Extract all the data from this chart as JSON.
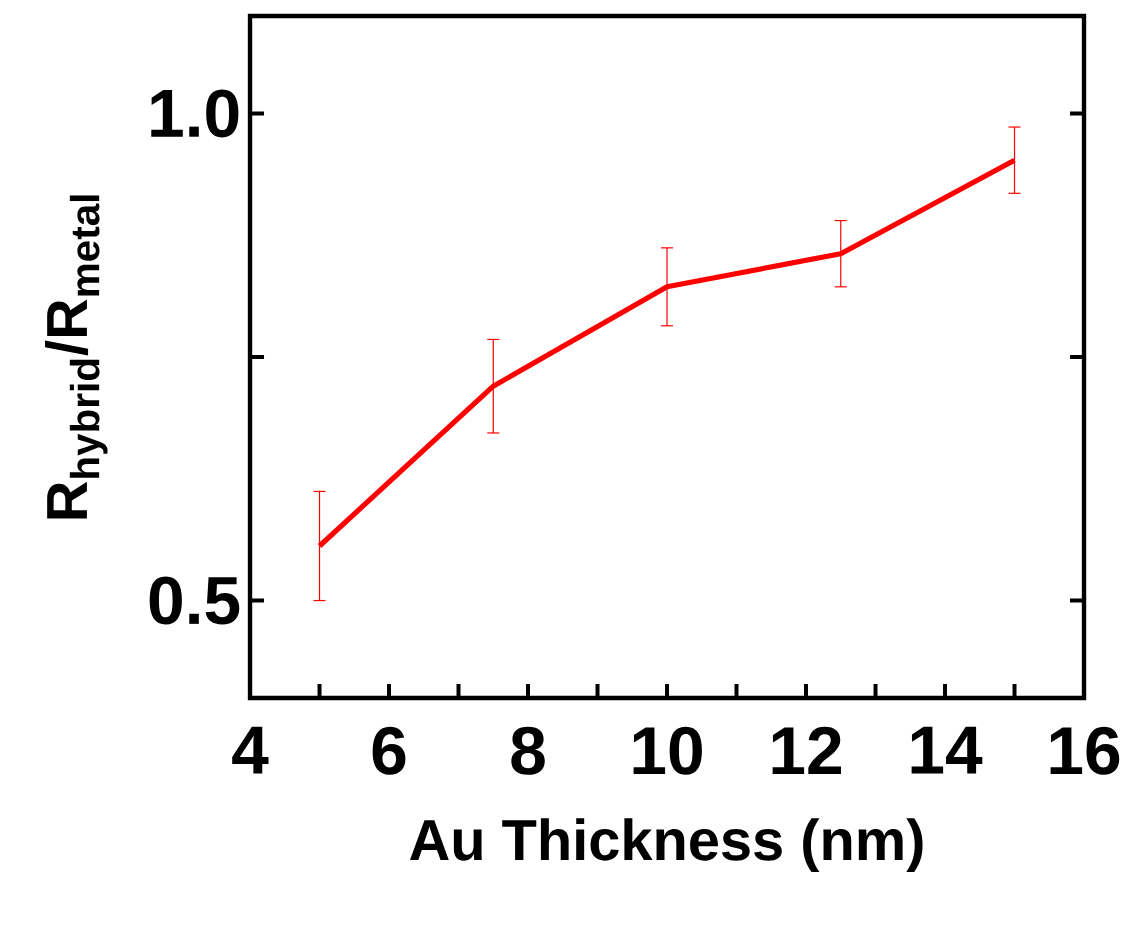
{
  "chart_data": {
    "type": "line",
    "xlabel": "Au Thickness (nm)",
    "ylabel": "R$_{hybrid}$/R$_{metal}$",
    "x": [
      5,
      7.5,
      10,
      12.5,
      15
    ],
    "series": [
      {
        "color": "#ff0000",
        "values": [
          0.556,
          0.72,
          0.822,
          0.856,
          0.952
        ],
        "errors": [
          0.056,
          0.048,
          0.04,
          0.034,
          0.034
        ]
      }
    ],
    "xlim": [
      4,
      16
    ],
    "ylim": [
      0.4,
      1.1
    ],
    "xticks": [
      4,
      {
        "value": 5,
        "label": null
      },
      6,
      {
        "value": 7,
        "label": null
      },
      8,
      {
        "value": 9,
        "label": null
      },
      10,
      {
        "value": 11,
        "label": null
      },
      12,
      {
        "value": 13,
        "label": null
      },
      14,
      {
        "value": 15,
        "label": null
      },
      16
    ],
    "yticks": [
      {
        "value": 0.5,
        "label": "0.5"
      },
      {
        "value": 0.75,
        "label": null
      },
      {
        "value": 1.0,
        "label": "1.0"
      }
    ],
    "marker": "none",
    "line_style": "solid"
  }
}
